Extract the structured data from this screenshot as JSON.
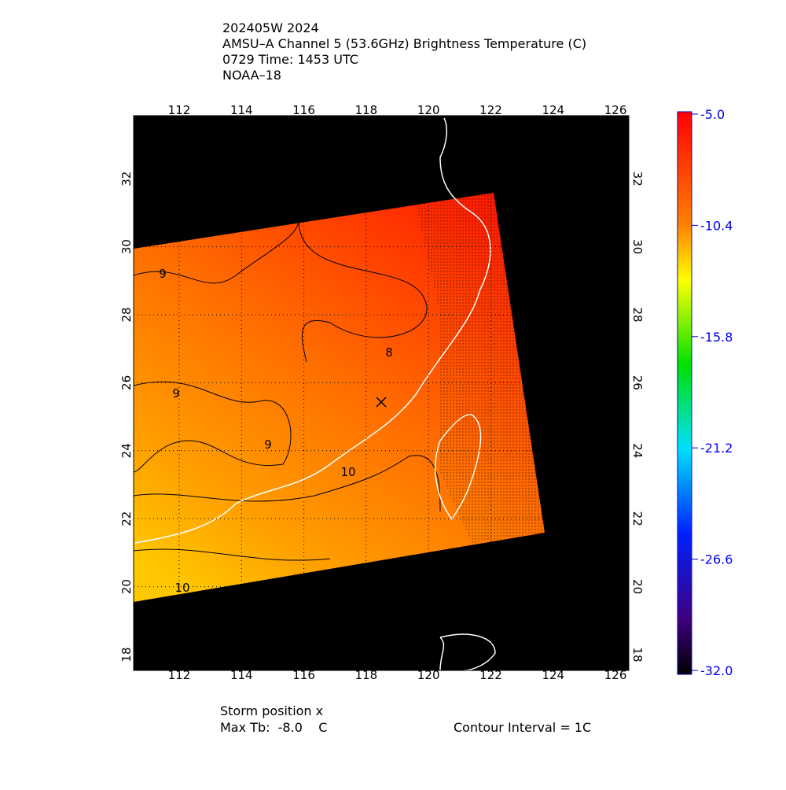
{
  "header": {
    "lines": [
      "202405W 2024",
      "AMSU–A Channel 5 (53.6GHz) Brightness Temperature (C)",
      "0729 Time: 1453 UTC",
      "NOAA–18"
    ]
  },
  "map": {
    "lon_ticks": [
      "112",
      "114",
      "116",
      "118",
      "120",
      "122",
      "124",
      "126"
    ],
    "lat_ticks": [
      "18",
      "20",
      "22",
      "24",
      "26",
      "28",
      "30",
      "32"
    ],
    "contour_labels": [
      "9",
      "8",
      "9",
      "9",
      "10",
      "10"
    ]
  },
  "colorbar": {
    "ticks": [
      "-5.0",
      "-10.4",
      "-15.8",
      "-21.2",
      "-26.6",
      "-32.0"
    ]
  },
  "footer": {
    "storm": "Storm position x",
    "max_tb": "Max Tb:  -8.0    C",
    "interval": "Contour Interval = 1C"
  }
}
